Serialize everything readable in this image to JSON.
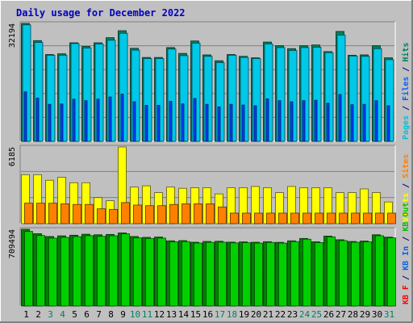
{
  "chart_data": {
    "type": "bar",
    "title": "Daily usage for December 2022",
    "categories": [
      "1",
      "2",
      "3",
      "4",
      "5",
      "6",
      "7",
      "8",
      "9",
      "10",
      "11",
      "12",
      "13",
      "14",
      "15",
      "16",
      "17",
      "18",
      "19",
      "20",
      "21",
      "22",
      "23",
      "24",
      "25",
      "26",
      "27",
      "28",
      "29",
      "30",
      "31"
    ],
    "weekend_categories": [
      "3",
      "4",
      "10",
      "11",
      "17",
      "18",
      "24",
      "25",
      "31"
    ],
    "panels": [
      {
        "id": "top",
        "max_label": "32194",
        "ymax": 32194,
        "side_labels": [
          {
            "text": "Pages",
            "color": "#00c0e0"
          },
          {
            "text": " / ",
            "color": "#000080"
          },
          {
            "text": "Files",
            "color": "#0060ff"
          },
          {
            "text": " / ",
            "color": "#000080"
          },
          {
            "text": "Hits",
            "color": "#00805c"
          }
        ],
        "series": [
          {
            "name": "Hits",
            "color": "#00805c",
            "values": [
              32194,
              27500,
              23700,
              23900,
              26900,
              25900,
              26900,
              28300,
              30200,
              25400,
              22900,
              22900,
              25600,
              24000,
              27400,
              23600,
              22000,
              23700,
              23200,
              22800,
              27100,
              26100,
              25300,
              26100,
              26300,
              24500,
              30000,
              23500,
              23600,
              26100,
              22800
            ]
          },
          {
            "name": "Files",
            "color": "#00c8e8",
            "values": [
              31800,
              27000,
              23500,
              23500,
              26700,
              25500,
              26600,
              27600,
              29500,
              24900,
              22600,
              22600,
              25200,
              23400,
              26800,
              23200,
              21500,
              23500,
              22900,
              22600,
              26600,
              25600,
              24800,
              25600,
              25700,
              24200,
              29000,
              23300,
              23200,
              25300,
              22300
            ]
          },
          {
            "name": "Pages",
            "color": "#0040ff",
            "values": [
              13500,
              11800,
              10100,
              10200,
              11500,
              11100,
              11500,
              12100,
              12900,
              10800,
              9800,
              9800,
              10900,
              10200,
              11700,
              10100,
              9400,
              10100,
              9900,
              9700,
              11600,
              11100,
              10800,
              11100,
              11200,
              10400,
              12800,
              10000,
              10100,
              11100,
              9700
            ]
          }
        ]
      },
      {
        "id": "middle",
        "max_label": "6185",
        "ymax": 6185,
        "side_labels": [
          {
            "text": "Visits",
            "color": "#ffff00"
          },
          {
            "text": " / ",
            "color": "#000080"
          },
          {
            "text": "Sites",
            "color": "#ff8000"
          }
        ],
        "series": [
          {
            "name": "Visits",
            "color": "#ffff00",
            "values": [
              3950,
              3950,
              3500,
              3750,
              3300,
              3300,
              2100,
              1850,
              6185,
              2950,
              3050,
              2500,
              2950,
              2850,
              2900,
              2900,
              2400,
              2900,
              2900,
              3000,
              2900,
              2500,
              3000,
              2900,
              2900,
              2900,
              2500,
              2500,
              2800,
              2500,
              1750
            ]
          },
          {
            "name": "Sites",
            "color": "#ff8000",
            "values": [
              1650,
              1650,
              1650,
              1600,
              1550,
              1550,
              1200,
              1150,
              1700,
              1500,
              1450,
              1450,
              1550,
              1600,
              1600,
              1600,
              1350,
              850,
              850,
              850,
              850,
              850,
              850,
              850,
              850,
              850,
              850,
              850,
              850,
              850,
              850
            ]
          }
        ]
      },
      {
        "id": "bottom",
        "max_label": "709494",
        "ymax": 709494,
        "side_labels": [
          {
            "text": "KB F",
            "color": "#ff0000"
          },
          {
            "text": " / ",
            "color": "#000080"
          },
          {
            "text": "KB In",
            "color": "#0060ff"
          },
          {
            "text": " / ",
            "color": "#000080"
          },
          {
            "text": "KB Out",
            "color": "#00c000"
          }
        ],
        "series": [
          {
            "name": "KB F",
            "color": "#008000",
            "values": [
              709494,
              669000,
              643000,
              649000,
              655000,
              664000,
              659000,
              662000,
              676000,
              643000,
              635000,
              638000,
              603000,
              605000,
              590000,
              597000,
              599000,
              591000,
              593000,
              590000,
              595000,
              589000,
              603000,
              625000,
              594000,
              647000,
              613000,
              597000,
              601000,
              659000,
              637000
            ]
          },
          {
            "name": "KB Out",
            "color": "#00d000",
            "values": [
              690000,
              652000,
              628000,
              635000,
              642000,
              651000,
              645000,
              650000,
              668000,
              630000,
              625000,
              628000,
              594000,
              596000,
              582000,
              589000,
              590000,
              584000,
              586000,
              582000,
              588000,
              582000,
              596000,
              618000,
              587000,
              640000,
              605000,
              590000,
              594000,
              650000,
              630000
            ]
          }
        ]
      }
    ]
  }
}
